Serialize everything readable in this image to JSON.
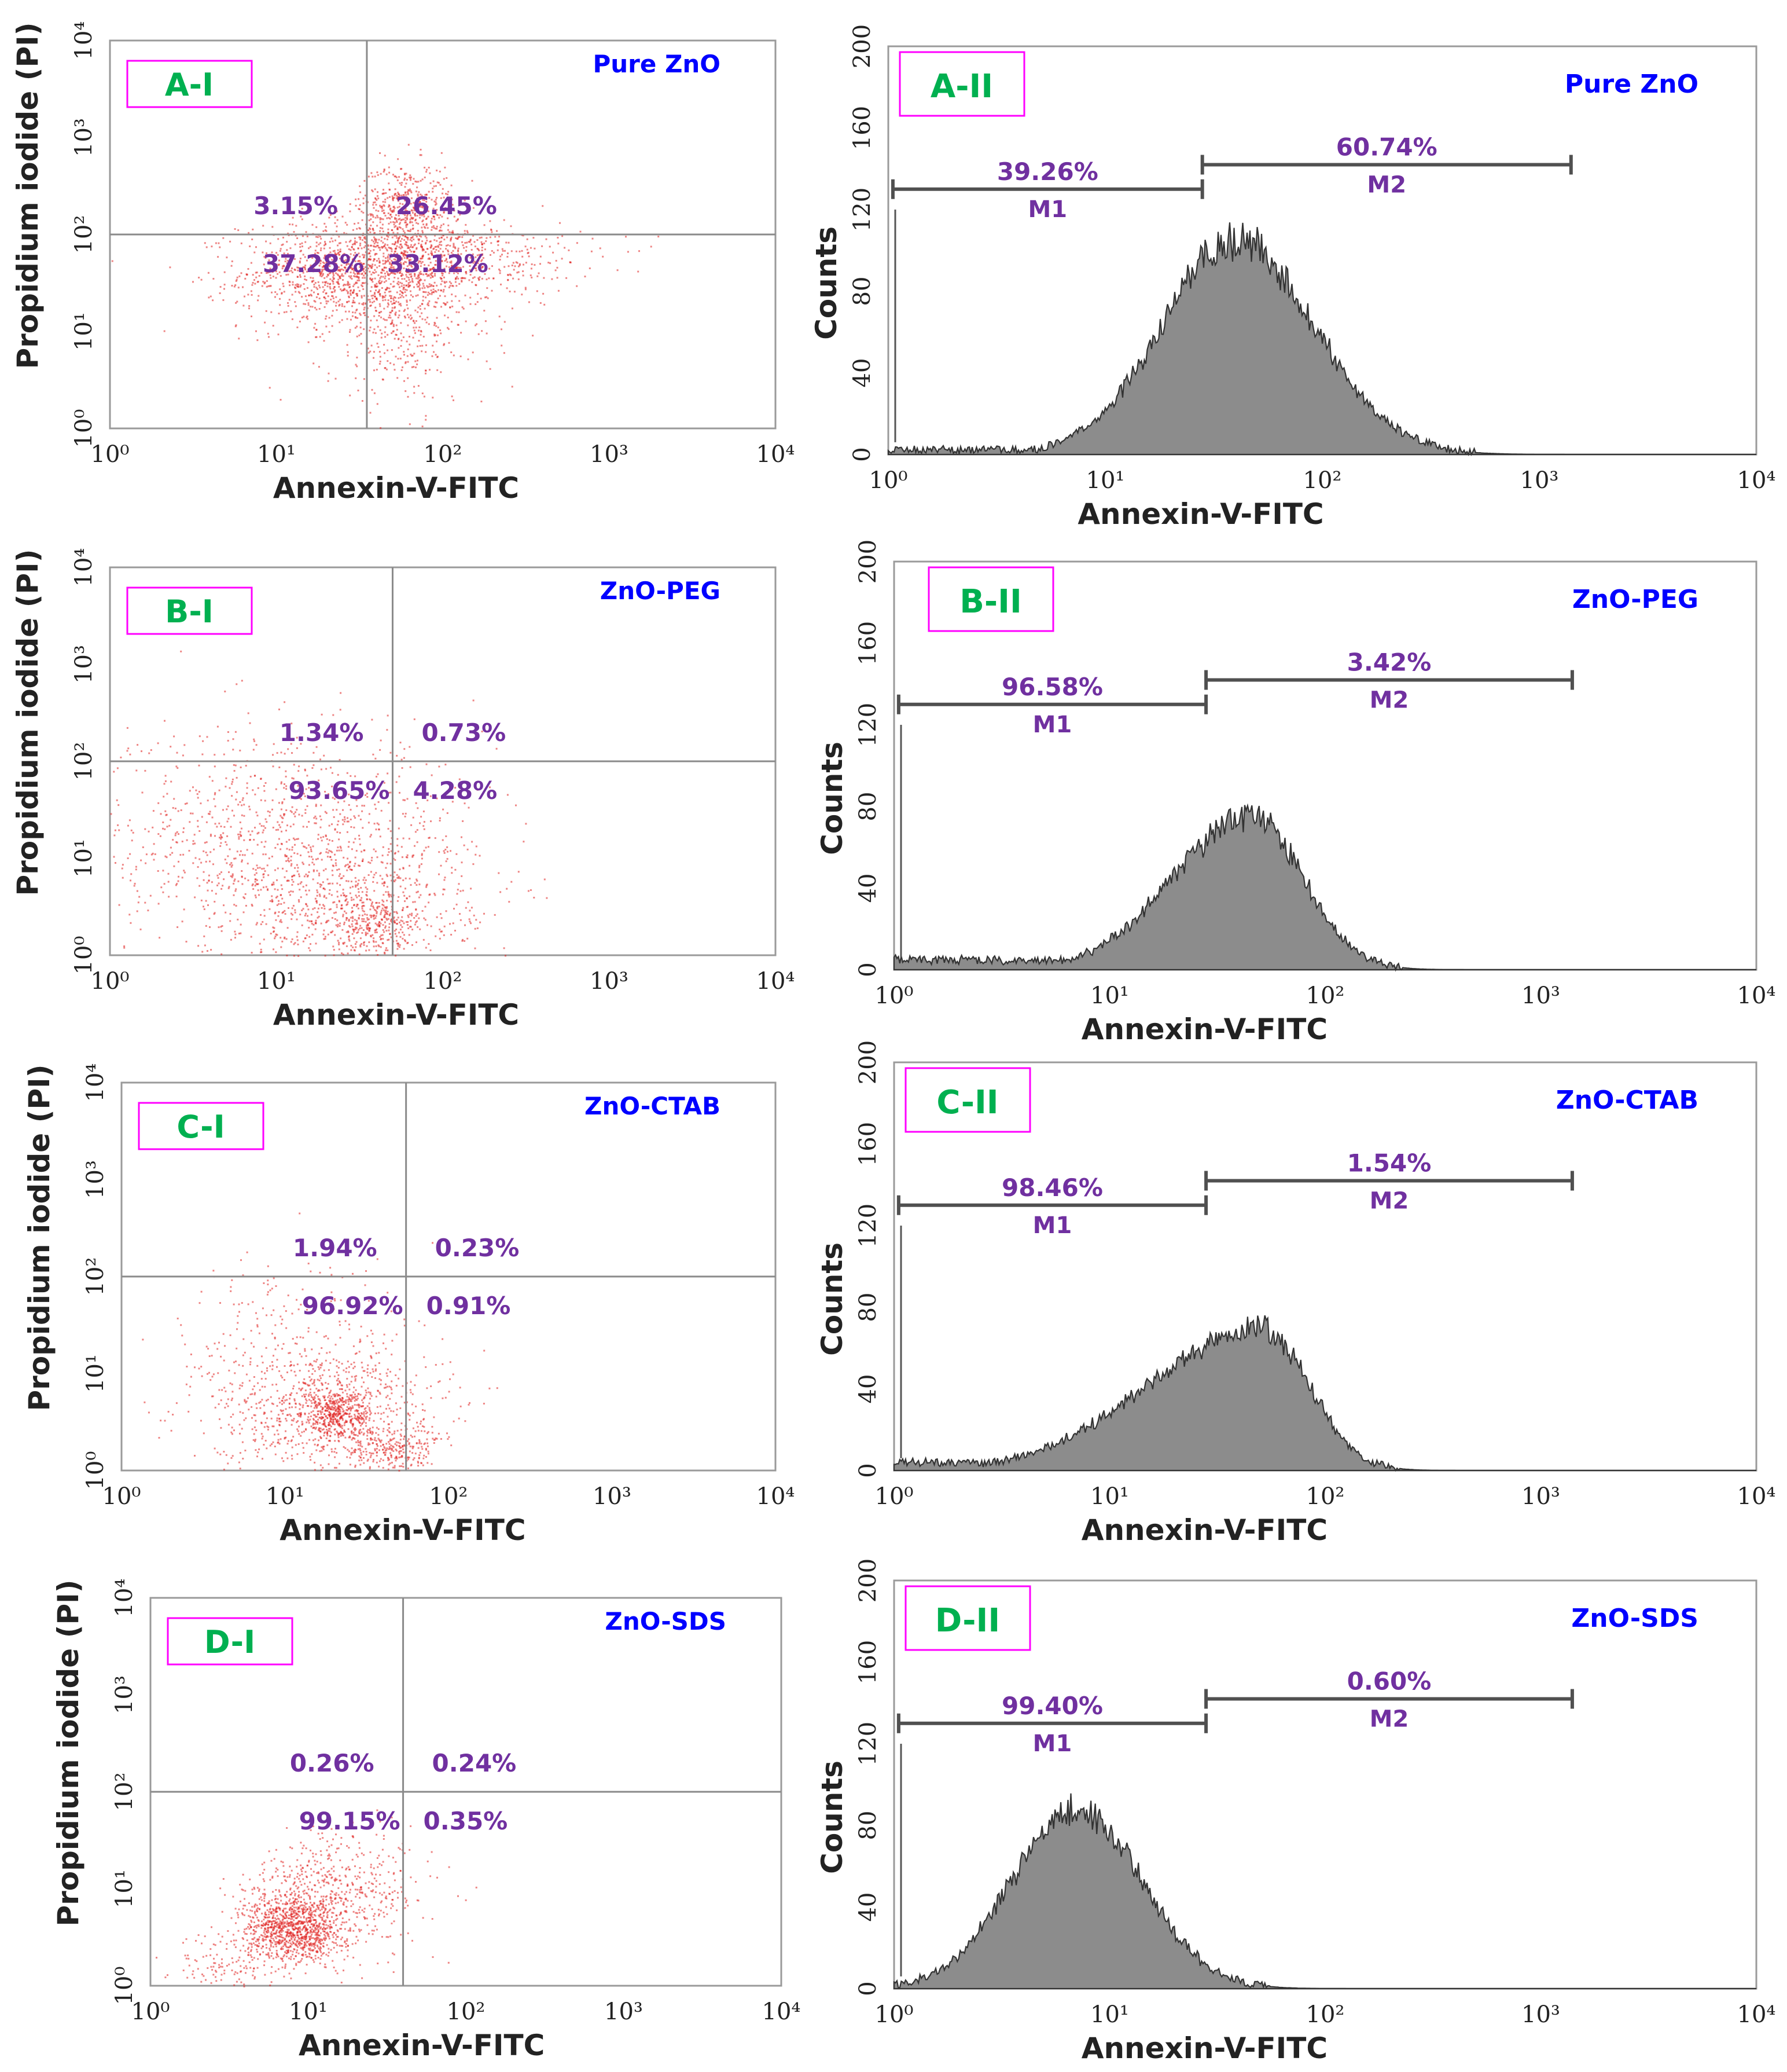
{
  "colors": {
    "dot": "#e0201f",
    "quad_label": "#7030a0",
    "sample_label": "#0000ff",
    "panel_id": "#00b050",
    "panel_id_border": "#ff00ff",
    "hist_fill": "#8c8c8c",
    "hist_line": "#333333",
    "frame": "#9a9a9a"
  },
  "common": {
    "x_title": "Annexin-V-FITC",
    "dot_y_title": "Propidium iodide (PI)",
    "hist_y_title": "Counts",
    "x_ticks": [
      "10⁰",
      "10¹",
      "10²",
      "10³",
      "10⁴"
    ],
    "dot_y_ticks": [
      "10⁰",
      "10¹",
      "10²",
      "10³",
      "10⁴"
    ],
    "hist_y_ticks": [
      "0",
      "40",
      "80",
      "120",
      "160",
      "200"
    ]
  },
  "chart_data": [
    {
      "type": "scatter",
      "panel": "A-I",
      "title": "Pure ZnO",
      "xlabel": "Annexin-V-FITC",
      "ylabel": "Propidium iodide (PI)",
      "xscale": "log",
      "yscale": "log",
      "xlim": [
        1,
        10000
      ],
      "ylim": [
        1,
        10000
      ],
      "quadrant_gate": {
        "x": 35,
        "y": 100
      },
      "quadrants": {
        "upper_left": "3.15%",
        "upper_right": "26.45%",
        "lower_left": "37.28%",
        "lower_right": "33.12%"
      }
    },
    {
      "type": "histogram",
      "panel": "A-II",
      "title": "Pure ZnO",
      "xlabel": "Annexin-V-FITC",
      "ylabel": "Counts",
      "xscale": "log",
      "xlim": [
        1,
        10000
      ],
      "ylim": [
        0,
        200
      ],
      "peak": {
        "x": 40,
        "count": 105
      },
      "markers": [
        {
          "name": "M1",
          "percent": "39.26%",
          "range": [
            1.05,
            28
          ],
          "level": 130
        },
        {
          "name": "M2",
          "percent": "60.74%",
          "range": [
            28,
            1400
          ],
          "level": 142
        }
      ]
    },
    {
      "type": "scatter",
      "panel": "B-I",
      "title": "ZnO-PEG",
      "xlabel": "Annexin-V-FITC",
      "ylabel": "Propidium iodide (PI)",
      "xscale": "log",
      "yscale": "log",
      "xlim": [
        1,
        10000
      ],
      "ylim": [
        1,
        10000
      ],
      "quadrant_gate": {
        "x": 50,
        "y": 100
      },
      "quadrants": {
        "upper_left": "1.34%",
        "upper_right": "0.73%",
        "lower_left": "93.65%",
        "lower_right": "4.28%"
      }
    },
    {
      "type": "histogram",
      "panel": "B-II",
      "title": "ZnO-PEG",
      "xlabel": "Annexin-V-FITC",
      "ylabel": "Counts",
      "xscale": "log",
      "xlim": [
        1,
        10000
      ],
      "ylim": [
        0,
        200
      ],
      "peak": {
        "x": 45,
        "count": 75
      },
      "markers": [
        {
          "name": "M1",
          "percent": "96.58%",
          "range": [
            1.05,
            28
          ],
          "level": 130
        },
        {
          "name": "M2",
          "percent": "3.42%",
          "range": [
            28,
            1400
          ],
          "level": 142
        }
      ]
    },
    {
      "type": "scatter",
      "panel": "C-I",
      "title": "ZnO-CTAB",
      "xlabel": "Annexin-V-FITC",
      "ylabel": "Propidium iodide (PI)",
      "xscale": "log",
      "yscale": "log",
      "xlim": [
        1,
        10000
      ],
      "ylim": [
        1,
        10000
      ],
      "quadrant_gate": {
        "x": 55,
        "y": 100
      },
      "quadrants": {
        "upper_left": "1.94%",
        "upper_right": "0.23%",
        "lower_left": "96.92%",
        "lower_right": "0.91%"
      }
    },
    {
      "type": "histogram",
      "panel": "C-II",
      "title": "ZnO-CTAB",
      "xlabel": "Annexin-V-FITC",
      "ylabel": "Counts",
      "xscale": "log",
      "xlim": [
        1,
        10000
      ],
      "ylim": [
        0,
        200
      ],
      "peak": {
        "x": 50,
        "count": 70
      },
      "markers": [
        {
          "name": "M1",
          "percent": "98.46%",
          "range": [
            1.05,
            28
          ],
          "level": 130
        },
        {
          "name": "M2",
          "percent": "1.54%",
          "range": [
            28,
            1400
          ],
          "level": 142
        }
      ]
    },
    {
      "type": "scatter",
      "panel": "D-I",
      "title": "ZnO-SDS",
      "xlabel": "Annexin-V-FITC",
      "ylabel": "Propidium iodide (PI)",
      "xscale": "log",
      "yscale": "log",
      "xlim": [
        1,
        10000
      ],
      "ylim": [
        1,
        10000
      ],
      "quadrant_gate": {
        "x": 40,
        "y": 100
      },
      "quadrants": {
        "upper_left": "0.26%",
        "upper_right": "0.24%",
        "lower_left": "99.15%",
        "lower_right": "0.35%"
      }
    },
    {
      "type": "histogram",
      "panel": "D-II",
      "title": "ZnO-SDS",
      "xlabel": "Annexin-V-FITC",
      "ylabel": "Counts",
      "xscale": "log",
      "xlim": [
        1,
        10000
      ],
      "ylim": [
        0,
        200
      ],
      "peak": {
        "x": 7,
        "count": 88
      },
      "markers": [
        {
          "name": "M1",
          "percent": "99.40%",
          "range": [
            1.05,
            28
          ],
          "level": 130
        },
        {
          "name": "M2",
          "percent": "0.60%",
          "range": [
            28,
            1400
          ],
          "level": 142
        }
      ]
    }
  ]
}
